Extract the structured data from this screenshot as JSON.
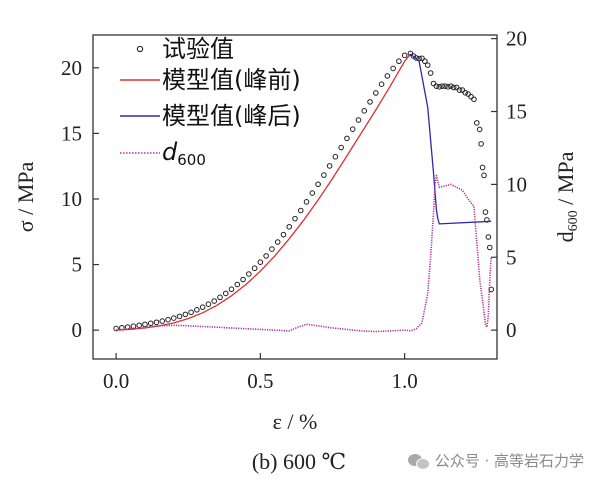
{
  "chart_data": {
    "type": "line",
    "caption": "(b) 600 ℃",
    "xlabel": "ε / %",
    "ylabel_left": "σ / MPa",
    "ylabel_right": "d600 / MPa",
    "xlim": [
      -0.08,
      1.32
    ],
    "ylim_left": [
      -2.2,
      22.5
    ],
    "ylim_right": [
      -1.98,
      20.25
    ],
    "x_ticks": [
      "0.0",
      "0.5",
      "1.0"
    ],
    "x_tick_values": [
      0,
      0.5,
      1.0
    ],
    "y_left_ticks": [
      "0",
      "5",
      "10",
      "15",
      "20"
    ],
    "y_left_tick_values": [
      0,
      5,
      10,
      15,
      20
    ],
    "y_right_ticks": [
      "0",
      "5",
      "10",
      "15",
      "20"
    ],
    "y_right_tick_values": [
      0,
      5,
      10,
      15,
      20
    ],
    "legend": {
      "placement": "top-left",
      "entries": [
        {
          "key": "test",
          "label": "试验值",
          "marker": "circle",
          "color": "#222222"
        },
        {
          "key": "pre",
          "label": "模型值(峰前)",
          "marker": "line",
          "color": "#e03030"
        },
        {
          "key": "post",
          "label": "模型值(峰后)",
          "marker": "line",
          "color": "#2b2ba8"
        },
        {
          "key": "d600",
          "label": "d600",
          "marker": "dotted-line",
          "color": "#b0309a"
        }
      ]
    },
    "series": [
      {
        "key": "test",
        "axis": "left",
        "style": "markers",
        "color": "#222222",
        "x": [
          0.0,
          0.02,
          0.04,
          0.06,
          0.08,
          0.1,
          0.12,
          0.14,
          0.16,
          0.18,
          0.2,
          0.22,
          0.24,
          0.26,
          0.28,
          0.3,
          0.32,
          0.34,
          0.36,
          0.38,
          0.4,
          0.42,
          0.44,
          0.46,
          0.48,
          0.5,
          0.52,
          0.54,
          0.56,
          0.58,
          0.6,
          0.62,
          0.64,
          0.66,
          0.68,
          0.7,
          0.72,
          0.74,
          0.76,
          0.78,
          0.8,
          0.82,
          0.84,
          0.86,
          0.88,
          0.9,
          0.92,
          0.94,
          0.96,
          0.98,
          1.0,
          1.02,
          1.03,
          1.04,
          1.05,
          1.06,
          1.07,
          1.08,
          1.09,
          1.1,
          1.11,
          1.12,
          1.13,
          1.14,
          1.15,
          1.16,
          1.17,
          1.18,
          1.19,
          1.2,
          1.21,
          1.22,
          1.23,
          1.24,
          1.25,
          1.26,
          1.265,
          1.27,
          1.275,
          1.28,
          1.285,
          1.29,
          1.295,
          1.3
        ],
        "y": [
          0.12,
          0.18,
          0.24,
          0.3,
          0.37,
          0.44,
          0.52,
          0.6,
          0.69,
          0.8,
          0.92,
          1.05,
          1.2,
          1.36,
          1.55,
          1.75,
          1.98,
          2.22,
          2.5,
          2.8,
          3.12,
          3.48,
          3.86,
          4.28,
          4.72,
          5.18,
          5.66,
          6.18,
          6.72,
          7.28,
          7.88,
          8.5,
          9.12,
          9.78,
          10.45,
          11.12,
          11.82,
          12.52,
          13.22,
          13.92,
          14.62,
          15.32,
          16.02,
          16.72,
          17.4,
          18.08,
          18.75,
          19.38,
          19.95,
          20.5,
          20.95,
          21.1,
          20.9,
          20.75,
          20.7,
          20.72,
          20.5,
          20.2,
          19.6,
          18.8,
          18.6,
          18.55,
          18.6,
          18.6,
          18.55,
          18.6,
          18.5,
          18.5,
          18.3,
          18.3,
          18.1,
          18.0,
          17.8,
          17.6,
          15.8,
          15.3,
          14.2,
          12.4,
          11.8,
          9.0,
          8.4,
          7.1,
          6.3,
          3.1
        ]
      },
      {
        "key": "pre",
        "axis": "left",
        "style": "solid",
        "color": "#e03030",
        "x": [
          0.0,
          0.05,
          0.1,
          0.15,
          0.2,
          0.25,
          0.3,
          0.35,
          0.4,
          0.45,
          0.5,
          0.55,
          0.6,
          0.65,
          0.7,
          0.75,
          0.8,
          0.85,
          0.9,
          0.95,
          1.0,
          1.02
        ],
        "y": [
          0.0,
          0.06,
          0.16,
          0.32,
          0.55,
          0.88,
          1.32,
          1.9,
          2.62,
          3.48,
          4.5,
          5.66,
          6.96,
          8.38,
          9.92,
          11.56,
          13.28,
          15.04,
          16.78,
          18.6,
          20.5,
          21.05
        ]
      },
      {
        "key": "post",
        "axis": "left",
        "style": "solid",
        "color": "#2b2ba8",
        "x": [
          1.02,
          1.05,
          1.08,
          1.1,
          1.11,
          1.115,
          1.12,
          1.3
        ],
        "y": [
          21.05,
          20.5,
          17.0,
          12.0,
          9.2,
          8.5,
          8.1,
          8.3
        ]
      },
      {
        "key": "d600",
        "axis": "right",
        "style": "dotted",
        "color": "#b0309a",
        "x": [
          0.0,
          0.05,
          0.1,
          0.15,
          0.2,
          0.25,
          0.3,
          0.35,
          0.4,
          0.45,
          0.5,
          0.55,
          0.6,
          0.63,
          0.66,
          0.7,
          0.75,
          0.8,
          0.85,
          0.9,
          0.95,
          1.0,
          1.02,
          1.04,
          1.06,
          1.08,
          1.09,
          1.1,
          1.105,
          1.11,
          1.12,
          1.14,
          1.16,
          1.18,
          1.2,
          1.22,
          1.24,
          1.25,
          1.26,
          1.27,
          1.28,
          1.285,
          1.29,
          1.295,
          1.3
        ],
        "y": [
          0.0,
          0.1,
          0.2,
          0.3,
          0.33,
          0.3,
          0.25,
          0.2,
          0.15,
          0.1,
          0.05,
          0.0,
          -0.05,
          0.2,
          0.4,
          0.3,
          0.15,
          0.05,
          -0.05,
          -0.1,
          -0.05,
          0.0,
          -0.05,
          0.1,
          0.5,
          2.5,
          5.0,
          8.0,
          10.0,
          10.6,
          9.8,
          9.9,
          10.0,
          9.8,
          9.6,
          9.0,
          8.5,
          6.0,
          3.5,
          2.0,
          0.4,
          0.2,
          1.0,
          3.5,
          5.0
        ]
      }
    ]
  },
  "watermark": {
    "icon": "wechat-icon",
    "text": "公众号 · 高等岩石力学"
  }
}
